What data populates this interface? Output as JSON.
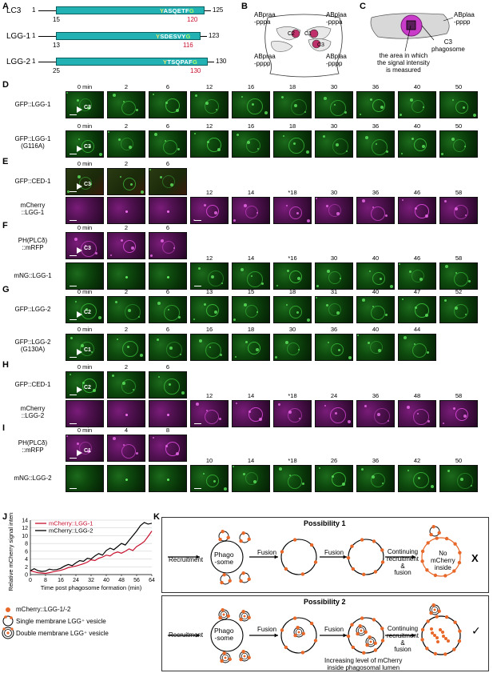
{
  "panels": {
    "A": "A",
    "B": "B",
    "C": "C",
    "D": "D",
    "E": "E",
    "F": "F",
    "G": "G",
    "H": "H",
    "I": "I",
    "J": "J",
    "K": "K"
  },
  "panel_a": {
    "proteins": [
      {
        "name": "LC3",
        "start": "1",
        "end": "125",
        "left_num": "15",
        "red_num": "120",
        "seq_yellow": "Y",
        "seq_white": "ASQETF",
        "seq_green": "G"
      },
      {
        "name": "LGG-1",
        "start": "1",
        "end": "123",
        "left_num": "13",
        "red_num": "116",
        "seq_yellow": "Y",
        "seq_white": "SDESVY",
        "seq_green": "G"
      },
      {
        "name": "LGG-2",
        "start": "1",
        "end": "130",
        "left_num": "25",
        "red_num": "130",
        "seq_yellow": "Y",
        "seq_white": "TSQPAF",
        "seq_green": "G"
      }
    ]
  },
  "panel_b": {
    "labels": [
      "ABpraa",
      "-pppa",
      "ABplaa",
      "-pppa",
      "C2",
      "C1",
      "C3",
      "ABpraa",
      "-pppp",
      "ABplaa",
      "-pppp"
    ]
  },
  "panel_c": {
    "label_cell_1": "ABplaa",
    "label_cell_2": "-pppp",
    "label_phago_1": "C3",
    "label_phago_2": "phagosome",
    "caption_1": "the area in which",
    "caption_2": "the signal intensity",
    "caption_3": "is measured"
  },
  "rows": {
    "D1": {
      "label": [
        "GFP::LGG-1"
      ],
      "times": [
        "0 min",
        "2",
        "6",
        "12",
        "16",
        "18",
        "30",
        "36",
        "40",
        "50"
      ],
      "cell": "C3"
    },
    "D2": {
      "label": [
        "GFP::LGG-1",
        "(G116A)"
      ],
      "times": [
        "0 min",
        "2",
        "6",
        "12",
        "16",
        "18",
        "30",
        "36",
        "40",
        "50"
      ],
      "cell": "C3"
    },
    "E1": {
      "label": [
        "GFP::CED-1"
      ],
      "times": [
        "0 min",
        "2",
        "6"
      ],
      "cell": "C3"
    },
    "E2": {
      "label": [
        "mCherry",
        "::LGG-1"
      ],
      "times": [
        "12",
        "14",
        "*18",
        "30",
        "36",
        "46",
        "58"
      ]
    },
    "F1": {
      "label": [
        "PH(PLCδ)",
        "::mRFP"
      ],
      "times": [
        "0 min",
        "2",
        "6"
      ],
      "cell": "C3"
    },
    "F2": {
      "label": [
        "mNG::LGG-1"
      ],
      "times": [
        "12",
        "14",
        "*16",
        "30",
        "40",
        "46",
        "58"
      ]
    },
    "G1": {
      "label": [
        "GFP::LGG-2"
      ],
      "times": [
        "0 min",
        "2",
        "6",
        "13",
        "15",
        "18",
        "31",
        "40",
        "47",
        "52"
      ],
      "cell": "C2"
    },
    "G2": {
      "label": [
        "GFP::LGG-2",
        "(G130A)"
      ],
      "times": [
        "0 min",
        "2",
        "6",
        "16",
        "18",
        "30",
        "36",
        "40",
        "44"
      ],
      "cell": "C1"
    },
    "H1": {
      "label": [
        "GFP::CED-1"
      ],
      "times": [
        "0 min",
        "2",
        "6"
      ],
      "cell": "C2"
    },
    "H2": {
      "label": [
        "mCherry",
        "::LGG-2"
      ],
      "times": [
        "12",
        "14",
        "*18",
        "24",
        "36",
        "48",
        "58"
      ]
    },
    "I1": {
      "label": [
        "PH(PLCδ)",
        "::mRFP"
      ],
      "times": [
        "0 min",
        "4",
        "8"
      ],
      "cell": "C1"
    },
    "I2": {
      "label": [
        "mNG::LGG-2"
      ],
      "times": [
        "10",
        "14",
        "*18",
        "26",
        "36",
        "42",
        "50"
      ]
    }
  },
  "chart_data": {
    "type": "line",
    "title": "",
    "xlabel": "Time post phagosome formation (min)",
    "ylabel": "Relative mCherry signal intensity",
    "xlim": [
      0,
      64
    ],
    "ylim": [
      0,
      14
    ],
    "xticks": [
      "0",
      "8",
      "16",
      "24",
      "32",
      "40",
      "48",
      "56",
      "64"
    ],
    "yticks": [
      "0",
      "2",
      "4",
      "6",
      "8",
      "10",
      "12",
      "14"
    ],
    "grid": true,
    "legend_position": "top-left",
    "series": [
      {
        "name": "mCherry::LGG-1",
        "color": "#c8102e",
        "x": [
          0,
          2,
          4,
          6,
          8,
          10,
          12,
          14,
          16,
          18,
          20,
          22,
          24,
          26,
          28,
          30,
          32,
          34,
          36,
          38,
          40,
          42,
          44,
          46,
          48,
          50,
          52,
          54,
          56,
          58,
          60,
          62,
          64
        ],
        "y": [
          1.0,
          0.7,
          0.5,
          0.4,
          0.3,
          0.5,
          0.7,
          0.9,
          1.1,
          1.4,
          1.8,
          2.0,
          2.2,
          2.5,
          2.8,
          3.2,
          3.8,
          3.6,
          4.2,
          4.5,
          5.0,
          4.8,
          5.5,
          5.8,
          5.5,
          6.0,
          6.6,
          6.2,
          7.2,
          7.8,
          8.5,
          9.8,
          11.2
        ]
      },
      {
        "name": "mCherry::LGG-2",
        "color": "#000000",
        "x": [
          0,
          2,
          4,
          6,
          8,
          10,
          12,
          14,
          16,
          18,
          20,
          22,
          24,
          26,
          28,
          30,
          32,
          34,
          36,
          38,
          40,
          42,
          44,
          46,
          48,
          50,
          52,
          54,
          56,
          58,
          60,
          62,
          64
        ],
        "y": [
          1.0,
          1.5,
          1.0,
          0.8,
          0.9,
          1.4,
          1.2,
          1.3,
          1.6,
          2.2,
          2.6,
          2.3,
          3.0,
          3.6,
          3.4,
          4.2,
          4.0,
          4.8,
          5.4,
          5.0,
          6.2,
          6.8,
          6.4,
          7.2,
          8.0,
          7.6,
          8.8,
          10.0,
          11.2,
          12.6,
          13.4,
          13.0,
          13.2
        ]
      }
    ]
  },
  "panel_k": {
    "p1_title": "Possibility 1",
    "p2_title": "Possibility 2",
    "recruitment": "Recruitment",
    "fusion": "Fusion",
    "continuing_1": "Continuing",
    "continuing_2": "recruitment",
    "continuing_3": "&",
    "continuing_4": "fusion",
    "phago_1": "Phago",
    "phago_2": "-some",
    "no_mcherry_1": "No",
    "no_mcherry_2": "mCherry",
    "no_mcherry_3": "inside",
    "x_mark": "X",
    "check_mark": "✓",
    "increasing": "Increasing level of mCherry",
    "increasing_2": "inside phagosomal lumen"
  },
  "legend": {
    "item1": "mCherry::LGG-1/-2",
    "item2": "Single membrane LGG⁺ vesicle",
    "item3": "Double membrane LGG⁺ vesicle"
  },
  "colors": {
    "orange": "#e8682a",
    "cyan_bar": "#22b2b4",
    "magenta": "#c63bc6",
    "green_mic": "#0e4a0e"
  }
}
